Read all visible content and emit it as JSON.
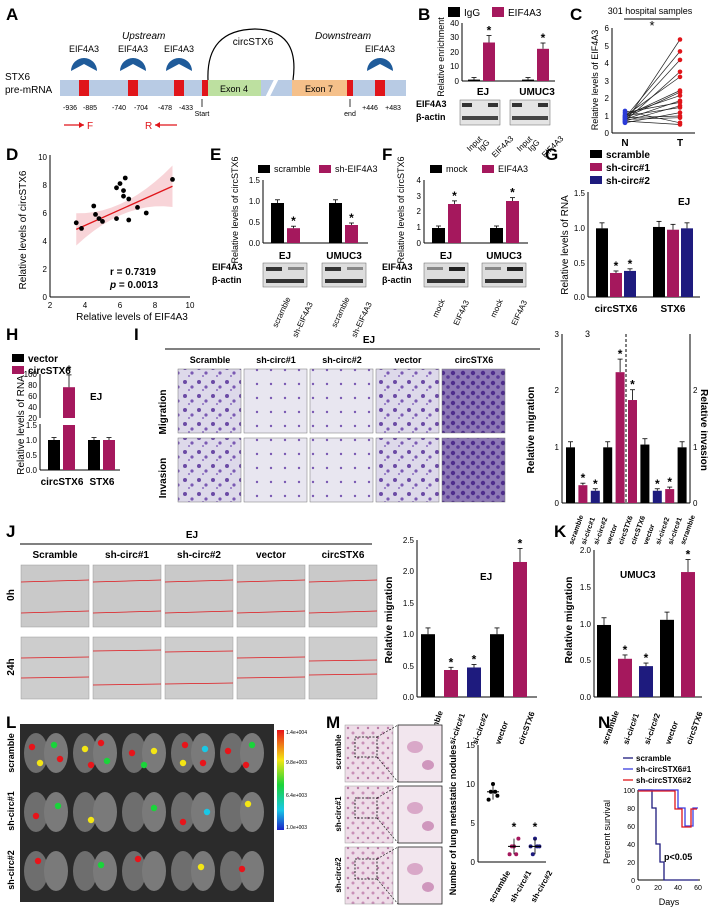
{
  "colors": {
    "black": "#000000",
    "magenta": "#a5185d",
    "navy": "#1e1b7e",
    "pre": "#b8cbe4",
    "exon4": "#bde0a0",
    "exon7": "#f5c08a",
    "site": "#e0151a",
    "pac": "#1f5b9a"
  },
  "panels": {
    "A": {
      "letter": "A",
      "upstream": "Upstream",
      "downstream": "Downstream",
      "circ": "circSTX6",
      "gene1": "STX6",
      "gene2": "pre-mRNA",
      "exon4": "Exon 4",
      "exon7": "Exon 7",
      "eif": "EIF4A3",
      "start": "Start",
      "end": "end",
      "F": "F",
      "R": "R",
      "coords": [
        "-936",
        "-885",
        "-740",
        "-704",
        "-478",
        "-433",
        "+446",
        "+483"
      ]
    },
    "B": {
      "letter": "B",
      "ylabel": "Relative enrichment",
      "legend": [
        "IgG",
        "EIF4A3"
      ],
      "groups": [
        "EJ",
        "UMUC3"
      ],
      "blot": [
        "EIF4A3",
        "β-actin"
      ],
      "lanes": [
        "Input",
        "IgG",
        "EIF4A3"
      ],
      "yticks": [
        "0",
        "10",
        "20",
        "30",
        "40"
      ]
    },
    "C": {
      "letter": "C",
      "title": "301 hospital samples",
      "ylabel": "Relative levels of EIF4A3",
      "xcats": [
        "N",
        "T"
      ],
      "yticks": [
        "0",
        "1",
        "2",
        "3",
        "4",
        "5",
        "6"
      ],
      "star": "*"
    },
    "D": {
      "letter": "D",
      "ylabel": "Relative levels of circSTX6",
      "xlabel": "Relative levels of EIF4A3",
      "r": "r = 0.7319",
      "p_label": "p",
      "p_val": " = 0.0013",
      "xticks": [
        "2",
        "4",
        "6",
        "8",
        "10"
      ],
      "yticks": [
        "0",
        "2",
        "4",
        "6",
        "8",
        "10"
      ]
    },
    "E": {
      "letter": "E",
      "ylabel": "Relative levels of circSTX6",
      "legend": [
        "scramble",
        "sh-EIF4A3"
      ],
      "groups": [
        "EJ",
        "UMUC3"
      ],
      "blot": [
        "EIF4A3",
        "β-actin"
      ],
      "lanes": [
        "scramble",
        "sh-EIF4A3",
        "scramble",
        "sh-EIF4A3"
      ],
      "yticks": [
        "0.0",
        "0.5",
        "1.0",
        "1.5"
      ]
    },
    "F": {
      "letter": "F",
      "ylabel": "Relative levels of circSTX6",
      "legend": [
        "mock",
        "EIF4A3"
      ],
      "groups": [
        "EJ",
        "UMUC3"
      ],
      "blot": [
        "EIF4A3",
        "β-actin"
      ],
      "lanes": [
        "mock",
        "EIF4A3",
        "mock",
        "EIF4A3"
      ],
      "yticks": [
        "0",
        "1",
        "2",
        "3",
        "4"
      ]
    },
    "G": {
      "letter": "G",
      "ylabel": "Relative levels of RNA",
      "legend": [
        "scramble",
        "sh-circ#1",
        "sh-circ#2"
      ],
      "tag": "EJ",
      "groups": [
        "circSTX6",
        "STX6"
      ],
      "yticks": [
        "0.0",
        "0.5",
        "1.0",
        "1.5"
      ]
    },
    "H": {
      "letter": "H",
      "ylabel": "Relative levels of RNA",
      "legend": [
        "vector",
        "circSTX6"
      ],
      "tag": "EJ",
      "groups": [
        "circSTX6",
        "STX6"
      ],
      "yticks_top": [
        "20",
        "40",
        "60",
        "80",
        "100"
      ],
      "yticks_bot": [
        "0.0",
        "0.5",
        "1.0",
        "1.5"
      ]
    },
    "I": {
      "letter": "I",
      "cell": "EJ",
      "cols": [
        "Scramble",
        "sh-circ#1",
        "sh-circ#2",
        "vector",
        "circSTX6"
      ],
      "rows": [
        "Migration",
        "Invasion"
      ],
      "ylabel_left": "Relative migration",
      "ylabel_right": "Relative invasion",
      "xcats": [
        "scramble",
        "si-circ#1",
        "si-circ#2",
        "vector",
        "circSTX6",
        "circSTX6",
        "vector",
        "si-circ#2",
        "si-circ#1",
        "scramble"
      ],
      "yticks": [
        "0",
        "1",
        "2",
        "3"
      ]
    },
    "J": {
      "letter": "J",
      "cell": "EJ",
      "cols": [
        "Scramble",
        "sh-circ#1",
        "sh-circ#2",
        "vector",
        "circSTX6"
      ],
      "rows": [
        "0h",
        "24h"
      ],
      "ylabel": "Relative migration",
      "tag": "EJ",
      "xcats": [
        "scramble",
        "si-circ#1",
        "si-circ#2",
        "vector",
        "circSTX6"
      ],
      "yticks": [
        "0.0",
        "0.5",
        "1.0",
        "1.5",
        "2.0",
        "2.5"
      ]
    },
    "K": {
      "letter": "K",
      "ylabel": "Relative migration",
      "tag": "UMUC3",
      "xcats": [
        "scramble",
        "si-circ#1",
        "si-circ#2",
        "vector",
        "circSTX6"
      ],
      "yticks": [
        "0.0",
        "0.5",
        "1.0",
        "1.5",
        "2.0"
      ]
    },
    "L": {
      "letter": "L",
      "rows": [
        "scramble",
        "sh-circ#1",
        "sh-circ#2"
      ],
      "scale": [
        "1.4e+004",
        "9.8e+003",
        "6.4e+003",
        "1.0e+003"
      ]
    },
    "M": {
      "letter": "M",
      "rows": [
        "scramble",
        "sh-circ#1",
        "sh-circ#2"
      ],
      "ylabel": "Number of lung metastatic nodules",
      "xcats": [
        "scramble",
        "sh-circ#1",
        "sh-circ#2"
      ],
      "yticks": [
        "0",
        "5",
        "10",
        "15"
      ]
    },
    "N": {
      "letter": "N",
      "legend": [
        "scramble",
        "sh-circSTX6#1",
        "sh-circSTX6#2"
      ],
      "ylabel": "Percent survival",
      "xlabel": "Days",
      "pval": "p<0.05",
      "yticks": [
        "0",
        "20",
        "40",
        "60",
        "80",
        "100"
      ],
      "xticks": [
        "0",
        "20",
        "40",
        "60"
      ]
    }
  },
  "chart_data": [
    {
      "panel": "B",
      "type": "bar",
      "categories": [
        "EJ",
        "UMUC3"
      ],
      "series": [
        {
          "name": "IgG",
          "values": [
            1,
            1
          ]
        },
        {
          "name": "EIF4A3",
          "values": [
            27.5,
            23
          ]
        }
      ],
      "ylim": [
        0,
        40
      ]
    },
    {
      "panel": "C",
      "type": "scatter",
      "categories": [
        "N",
        "T"
      ],
      "ylim": [
        0,
        6
      ]
    },
    {
      "panel": "D",
      "type": "scatter",
      "x": [
        3.5,
        3.8,
        4.5,
        4.8,
        5.0,
        4.6,
        5.8,
        6.0,
        6.2,
        6.3,
        5.8,
        6.5,
        7.0,
        7.5,
        6.5,
        9.0,
        6.2
      ],
      "y": [
        5.3,
        4.9,
        6.5,
        5.6,
        5.4,
        5.9,
        7.8,
        8.1,
        7.6,
        8.5,
        5.6,
        5.5,
        6.4,
        6.0,
        7.0,
        8.4,
        7.2
      ],
      "xlim": [
        2,
        10
      ],
      "ylim": [
        0,
        10
      ]
    },
    {
      "panel": "E",
      "type": "bar",
      "categories": [
        "EJ",
        "UMUC3"
      ],
      "series": [
        {
          "name": "scramble",
          "values": [
            1.0,
            1.0
          ]
        },
        {
          "name": "sh-EIF4A3",
          "values": [
            0.37,
            0.45
          ]
        }
      ],
      "ylim": [
        0,
        1.5
      ]
    },
    {
      "panel": "F",
      "type": "bar",
      "categories": [
        "EJ",
        "UMUC3"
      ],
      "series": [
        {
          "name": "mock",
          "values": [
            1.0,
            1.0
          ]
        },
        {
          "name": "EIF4A3",
          "values": [
            2.6,
            2.8
          ]
        }
      ],
      "ylim": [
        0,
        4
      ]
    },
    {
      "panel": "G",
      "type": "bar",
      "categories": [
        "circSTX6",
        "STX6"
      ],
      "series": [
        {
          "name": "scramble",
          "values": [
            1.0,
            1.02
          ]
        },
        {
          "name": "sh-circ#1",
          "values": [
            0.35,
            0.98
          ]
        },
        {
          "name": "sh-circ#2",
          "values": [
            0.38,
            1.0
          ]
        }
      ],
      "ylim": [
        0,
        1.5
      ]
    },
    {
      "panel": "H",
      "type": "bar",
      "categories": [
        "circSTX6",
        "STX6"
      ],
      "series": [
        {
          "name": "vector",
          "values": [
            1.0,
            1.0
          ]
        },
        {
          "name": "circSTX6",
          "values": [
            76,
            1.0
          ]
        }
      ],
      "ylim": [
        0,
        100
      ]
    },
    {
      "panel": "I",
      "type": "bar",
      "categories": [
        "scramble",
        "si-circ#1",
        "si-circ#2",
        "vector",
        "circSTX6",
        "circSTX6",
        "vector",
        "si-circ#2",
        "si-circ#1",
        "scramble"
      ],
      "values": [
        1.0,
        0.32,
        0.22,
        1.0,
        2.35,
        1.85,
        1.05,
        0.22,
        0.25,
        1.0
      ],
      "ylim": [
        0,
        3
      ]
    },
    {
      "panel": "J",
      "type": "bar",
      "categories": [
        "scramble",
        "si-circ#1",
        "si-circ#2",
        "vector",
        "circSTX6"
      ],
      "values": [
        1.0,
        0.43,
        0.47,
        1.0,
        2.15
      ],
      "ylim": [
        0,
        2.5
      ]
    },
    {
      "panel": "K",
      "type": "bar",
      "categories": [
        "scramble",
        "si-circ#1",
        "si-circ#2",
        "vector",
        "circSTX6"
      ],
      "values": [
        0.98,
        0.52,
        0.42,
        1.05,
        1.7
      ],
      "ylim": [
        0,
        2.0
      ]
    },
    {
      "panel": "M",
      "type": "scatter",
      "categories": [
        "scramble",
        "sh-circ#1",
        "sh-circ#2"
      ],
      "values": [
        9,
        2,
        2
      ],
      "ylim": [
        0,
        15
      ]
    },
    {
      "panel": "N",
      "type": "line",
      "series": [
        {
          "name": "scramble"
        },
        {
          "name": "sh-circSTX6#1"
        },
        {
          "name": "sh-circSTX6#2"
        }
      ],
      "xlim": [
        0,
        60
      ],
      "ylim": [
        0,
        100
      ]
    }
  ]
}
